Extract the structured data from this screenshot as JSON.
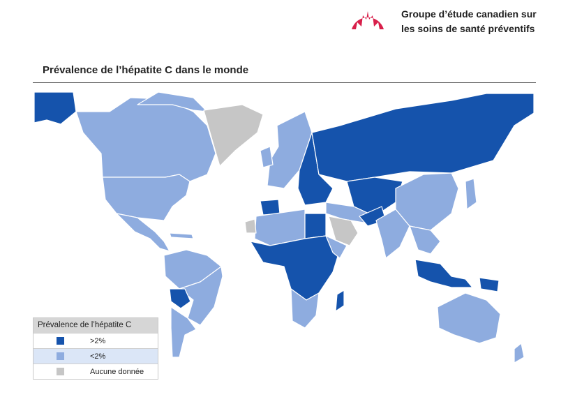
{
  "header": {
    "org_line1": "Groupe d’étude canadien sur",
    "org_line2": "les soins de santé préventifs"
  },
  "map": {
    "title": "Prévalence de l’hépatite C dans le monde",
    "colors": {
      "high": "#1553ac",
      "low": "#8eacdf",
      "none": "#c6c6c6",
      "logo": "#d81f4a"
    },
    "high_prevalence_regions": [
      "Russia",
      "Central Asia",
      "Egypt",
      "Central Africa",
      "Madagascar",
      "Bolivia",
      "Spain",
      "Pakistan",
      "Indonesia",
      "Eastern Europe"
    ],
    "low_prevalence_regions": [
      "Canada",
      "United States",
      "Brazil",
      "China",
      "India",
      "Australia",
      "Western Europe"
    ],
    "no_data_regions": [
      "Greenland",
      "Saudi Arabia",
      "Western Sahara"
    ]
  },
  "legend": {
    "title": "Prévalence de l’hépatite C",
    "items": [
      {
        "label": ">2%",
        "color": "#1553ac"
      },
      {
        "label": "<2%",
        "color": "#8eacdf"
      },
      {
        "label": "Aucune donnée",
        "color": "#c6c6c6"
      }
    ]
  }
}
